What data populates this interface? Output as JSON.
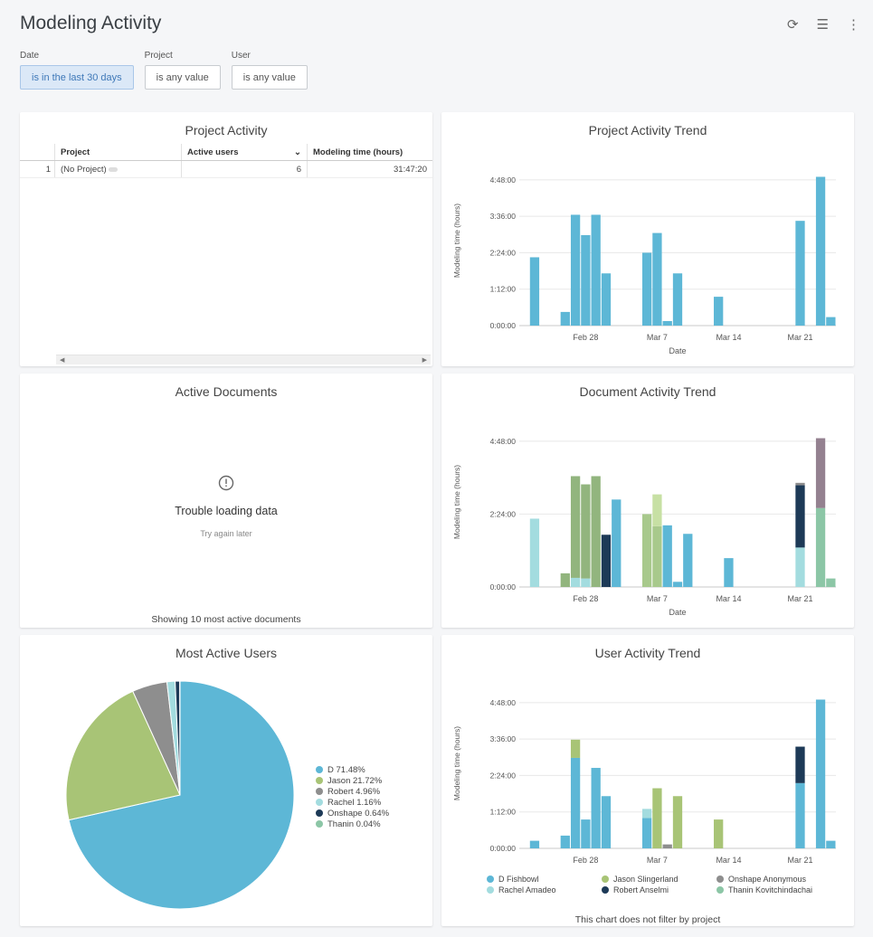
{
  "header": {
    "title": "Modeling Activity",
    "icons": [
      "refresh-icon",
      "filter-icon",
      "more-vert-icon"
    ]
  },
  "filters": [
    {
      "label": "Date",
      "value": "is in the last 30 days"
    },
    {
      "label": "Project",
      "value": "is any value"
    },
    {
      "label": "User",
      "value": "is any value"
    }
  ],
  "project_activity": {
    "title": "Project Activity",
    "columns": [
      "Project",
      "Active users",
      "Modeling time (hours)"
    ],
    "rows": [
      {
        "index": "1",
        "project": "(No Project)",
        "active_users": "6",
        "modeling_time": "31:47:20"
      }
    ]
  },
  "active_documents": {
    "title": "Active Documents",
    "error_title": "Trouble loading data",
    "error_sub": "Try again later",
    "footer": "Showing 10 most active documents"
  },
  "user_activity_footer": "This chart does not filter by project",
  "colors": {
    "D Fishbowl": "#5db7d6",
    "Jason Slingerland": "#a8c476",
    "Robert": "#8e8e8e",
    "Rachel Amadeo": "#a3dcdf",
    "Robert Anselmi": "#1d3a57",
    "Onshape Anonymous": "#8e8e8e",
    "Thanin Kovitchindachai": "#8cc6a6",
    "c1": "#a3dcdf",
    "c2": "#92b57e",
    "c3": "#a8c98c",
    "c4": "#c7e0a4",
    "c5": "#5db7d6",
    "c6": "#1d3a57",
    "c7": "#948190"
  },
  "chart_data": [
    {
      "type": "bar",
      "title": "Project Activity Trend",
      "xlabel": "Date",
      "ylabel": "Modeling time (hours)",
      "ylim": [
        0,
        5.6
      ],
      "yticks": [
        0,
        1.2,
        2.4,
        3.6,
        4.8
      ],
      "ytick_labels": [
        "0:00:00",
        "1:12:00",
        "2:24:00",
        "3:36:00",
        "4:48:00"
      ],
      "xtick_labels": [
        {
          "label": "Feb 28",
          "day": 6
        },
        {
          "label": "Mar 7",
          "day": 13
        },
        {
          "label": "Mar 14",
          "day": 20
        },
        {
          "label": "Mar 21",
          "day": 27
        }
      ],
      "days": 31,
      "series": [
        {
          "color": "#5db7d6",
          "values": [
            0,
            2.25,
            0,
            0,
            0.45,
            3.65,
            2.98,
            3.65,
            1.72,
            0,
            0,
            0,
            2.4,
            3.05,
            0.15,
            1.72,
            0,
            0,
            0,
            0.95,
            0,
            0,
            0,
            0,
            0,
            0,
            0,
            3.45,
            0,
            4.9,
            0.28
          ]
        }
      ]
    },
    {
      "type": "bar",
      "stacked": true,
      "title": "Document Activity Trend",
      "xlabel": "Date",
      "ylabel": "Modeling time (hours)",
      "ylim": [
        0,
        5.6
      ],
      "yticks": [
        0,
        2.4,
        4.8
      ],
      "ytick_labels": [
        "0:00:00",
        "2:24:00",
        "4:48:00"
      ],
      "xtick_labels": [
        {
          "label": "Feb 28",
          "day": 6
        },
        {
          "label": "Mar 7",
          "day": 13
        },
        {
          "label": "Mar 14",
          "day": 20
        },
        {
          "label": "Mar 21",
          "day": 27
        }
      ],
      "days": 31,
      "series": [
        {
          "color": "#a3dcdf",
          "values": [
            0,
            2.25,
            0,
            0,
            0,
            0.3,
            0.28,
            0,
            0,
            0,
            0,
            0,
            0,
            0,
            0,
            0,
            0,
            0,
            0,
            0,
            0,
            0,
            0,
            0,
            0,
            0,
            0,
            1.3,
            0,
            0,
            0
          ]
        },
        {
          "color": "#92b57e",
          "values": [
            0,
            0,
            0,
            0,
            0.45,
            3.35,
            3.1,
            3.65,
            0,
            0,
            0,
            0,
            0,
            0,
            0,
            0,
            0,
            0,
            0,
            0,
            0,
            0,
            0,
            0,
            0,
            0,
            0,
            0,
            0,
            0,
            0
          ]
        },
        {
          "color": "#a8c98c",
          "values": [
            0,
            0,
            0,
            0,
            0,
            0,
            0,
            0,
            0,
            0,
            0,
            0,
            2.4,
            2.0,
            0,
            0,
            0,
            0,
            0,
            0,
            0,
            0,
            0,
            0,
            0,
            0,
            0,
            0,
            0,
            0,
            0
          ]
        },
        {
          "color": "#c7e0a4",
          "values": [
            0,
            0,
            0,
            0,
            0,
            0,
            0,
            0,
            0,
            0,
            0,
            0,
            0,
            1.05,
            0,
            0,
            0,
            0,
            0,
            0,
            0,
            0,
            0,
            0,
            0,
            0,
            0,
            0,
            0,
            0,
            0
          ]
        },
        {
          "color": "#5db7d6",
          "values": [
            0,
            0,
            0,
            0,
            0,
            0,
            0,
            0,
            0,
            2.88,
            0,
            0,
            0,
            0,
            2.03,
            0.17,
            1.75,
            0,
            0,
            0,
            0.95,
            0,
            0,
            0,
            0,
            0,
            0,
            0,
            0,
            0,
            0
          ]
        },
        {
          "color": "#1d3a57",
          "values": [
            0,
            0,
            0,
            0,
            0,
            0,
            0,
            0,
            1.72,
            0,
            0,
            0,
            0,
            0,
            0,
            0,
            0,
            0,
            0,
            0,
            0,
            0,
            0,
            0,
            0,
            0,
            0,
            2.05,
            0,
            0,
            0
          ]
        },
        {
          "color": "#8e8e8e",
          "values": [
            0,
            0,
            0,
            0,
            0,
            0,
            0,
            0,
            0,
            0,
            0,
            0,
            0,
            0,
            0,
            0,
            0,
            0,
            0,
            0,
            0,
            0,
            0,
            0,
            0,
            0,
            0,
            0.08,
            0,
            0,
            0
          ]
        },
        {
          "color": "#8cc6a6",
          "values": [
            0,
            0,
            0,
            0,
            0,
            0,
            0,
            0,
            0,
            0,
            0,
            0,
            0,
            0,
            0,
            0,
            0,
            0,
            0,
            0,
            0,
            0,
            0,
            0,
            0,
            0,
            0,
            0,
            0,
            2.6,
            0.28
          ]
        },
        {
          "color": "#948190",
          "values": [
            0,
            0,
            0,
            0,
            0,
            0,
            0,
            0,
            0,
            0,
            0,
            0,
            0,
            0,
            0,
            0,
            0,
            0,
            0,
            0,
            0,
            0,
            0,
            0,
            0,
            0,
            0,
            0,
            0,
            2.3,
            0
          ]
        }
      ]
    },
    {
      "type": "pie",
      "title": "Most Active Users",
      "slices": [
        {
          "label": "D 71.48%",
          "value": 71.48,
          "color": "#5db7d6"
        },
        {
          "label": "Jason 21.72%",
          "value": 21.72,
          "color": "#a8c476"
        },
        {
          "label": "Robert 4.96%",
          "value": 4.96,
          "color": "#8e8e8e"
        },
        {
          "label": "Rachel 1.16%",
          "value": 1.16,
          "color": "#a3dcdf"
        },
        {
          "label": "Onshape 0.64%",
          "value": 0.64,
          "color": "#1d3a57"
        },
        {
          "label": "Thanin 0.04%",
          "value": 0.04,
          "color": "#8cc6a6"
        }
      ]
    },
    {
      "type": "bar",
      "stacked": true,
      "title": "User Activity Trend",
      "xlabel": "Date",
      "ylabel": "Modeling time (hours)",
      "ylim": [
        0,
        5.6
      ],
      "yticks": [
        0,
        1.2,
        2.4,
        3.6,
        4.8
      ],
      "ytick_labels": [
        "0:00:00",
        "1:12:00",
        "2:24:00",
        "3:36:00",
        "4:48:00"
      ],
      "xtick_labels": [
        {
          "label": "Feb 28",
          "day": 6
        },
        {
          "label": "Mar 7",
          "day": 13
        },
        {
          "label": "Mar 14",
          "day": 20
        },
        {
          "label": "Mar 21",
          "day": 27
        }
      ],
      "days": 31,
      "series": [
        {
          "name": "D Fishbowl",
          "color": "#5db7d6",
          "values": [
            0,
            0.25,
            0,
            0,
            0.42,
            2.98,
            0.95,
            2.65,
            1.72,
            0,
            0,
            0,
            1.0,
            0,
            0,
            0,
            0,
            0,
            0,
            0,
            0,
            0,
            0,
            0,
            0,
            0,
            0,
            2.15,
            0,
            4.9,
            0.25
          ]
        },
        {
          "name": "Jason Slingerland",
          "color": "#a8c476",
          "values": [
            0,
            0,
            0,
            0,
            0,
            0.6,
            0,
            0,
            0,
            0,
            0,
            0,
            0,
            1.98,
            0,
            1.72,
            0,
            0,
            0,
            0.95,
            0,
            0,
            0,
            0,
            0,
            0,
            0,
            0,
            0,
            0,
            0
          ]
        },
        {
          "name": "Onshape Anonymous",
          "color": "#8e8e8e",
          "values": [
            0,
            0,
            0,
            0,
            0,
            0,
            0,
            0,
            0,
            0,
            0,
            0,
            0,
            0,
            0.13,
            0,
            0,
            0,
            0,
            0,
            0,
            0,
            0,
            0,
            0,
            0,
            0,
            0,
            0,
            0,
            0
          ]
        },
        {
          "name": "Rachel Amadeo",
          "color": "#a3dcdf",
          "values": [
            0,
            0,
            0,
            0,
            0,
            0,
            0,
            0,
            0,
            0,
            0,
            0,
            0.3,
            0,
            0,
            0,
            0,
            0,
            0,
            0,
            0,
            0,
            0,
            0,
            0,
            0,
            0,
            0,
            0,
            0,
            0
          ]
        },
        {
          "name": "Robert Anselmi",
          "color": "#1d3a57",
          "values": [
            0,
            0,
            0,
            0,
            0,
            0,
            0,
            0,
            0,
            0,
            0,
            0,
            0,
            0,
            0,
            0,
            0,
            0,
            0,
            0,
            0,
            0,
            0,
            0,
            0,
            0,
            0,
            1.2,
            0,
            0,
            0
          ]
        },
        {
          "name": "Thanin Kovitchindachai",
          "color": "#8cc6a6",
          "values": [
            0,
            0,
            0,
            0,
            0,
            0,
            0,
            0,
            0,
            0,
            0,
            0,
            0,
            0,
            0,
            0,
            0,
            0,
            0,
            0,
            0,
            0,
            0,
            0,
            0,
            0,
            0,
            0,
            0,
            0,
            0
          ]
        }
      ]
    }
  ]
}
